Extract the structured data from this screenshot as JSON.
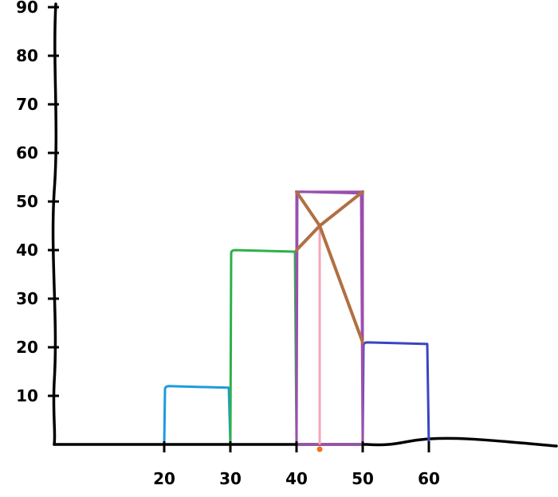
{
  "chart_data": {
    "type": "bar",
    "title": "",
    "xlabel": "",
    "ylabel": "",
    "xlim": [
      12,
      100
    ],
    "ylim": [
      0,
      100
    ],
    "x_ticks": [
      "20",
      "30",
      "40",
      "50",
      "60"
    ],
    "y_ticks": [
      "10",
      "20",
      "30",
      "40",
      "50",
      "60",
      "70",
      "80",
      "90"
    ],
    "bars": [
      {
        "x_start": 20,
        "x_end": 30,
        "value": 12,
        "color": "#1e9ae0"
      },
      {
        "x_start": 30,
        "x_end": 40,
        "value": 40,
        "color": "#2db04a"
      },
      {
        "x_start": 40,
        "x_end": 50,
        "value": 52,
        "color": "#9b4fae"
      },
      {
        "x_start": 50,
        "x_end": 60,
        "value": 21,
        "color": "#3a45c0"
      }
    ],
    "overlay_lines": [
      {
        "kind": "vertical",
        "x": 43.5,
        "y_top": 45,
        "color": "#f4a6b8"
      },
      {
        "kind": "stroke",
        "points": [
          [
            40,
            52
          ],
          [
            43.5,
            45
          ],
          [
            50,
            21
          ]
        ],
        "color": "#b07043"
      },
      {
        "kind": "stroke",
        "points": [
          [
            40,
            40
          ],
          [
            43.5,
            45
          ],
          [
            50,
            52
          ]
        ],
        "color": "#b07043"
      }
    ],
    "marker": {
      "x": 43.5,
      "y": 0,
      "color": "#ff6a1a"
    },
    "axis_color": "#000000"
  }
}
